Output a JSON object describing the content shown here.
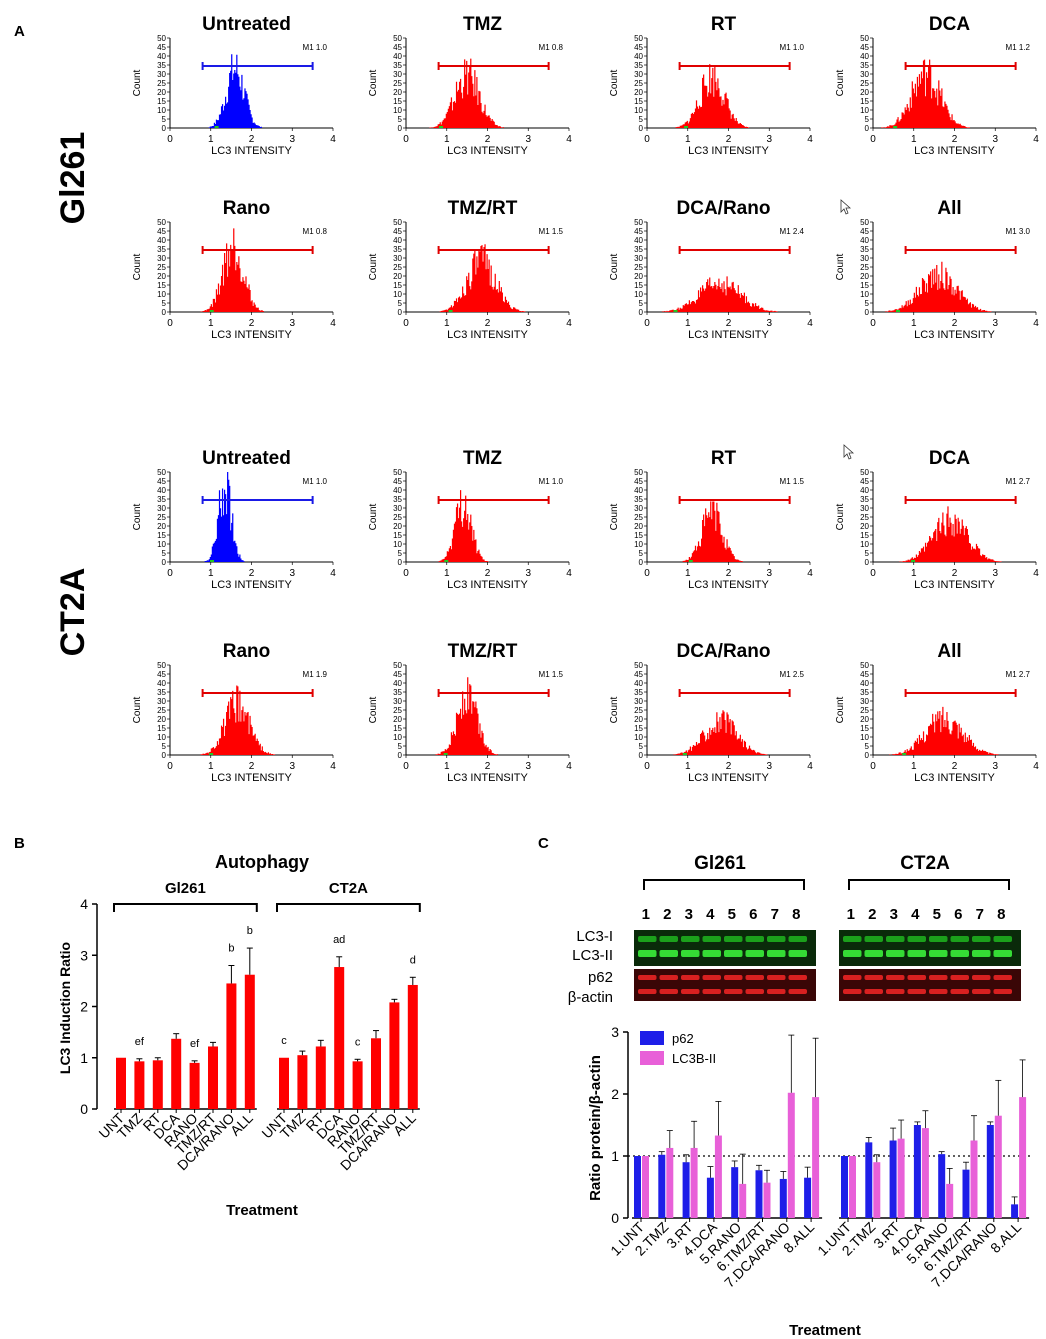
{
  "panels": {
    "a": "A",
    "b": "B",
    "c": "C"
  },
  "colors": {
    "untreated": "#0000ff",
    "treated": "#ff0000",
    "gate_blue": "#1a1ae6",
    "gate_red": "#e00000",
    "p62": "#1e1ee8",
    "lc3": "#e860d8",
    "green_band": "#22c822",
    "red_band": "#d82020"
  },
  "chart_data": [
    {
      "type": "histogram",
      "id": "flow-gl261",
      "cell_line": "Gl261",
      "xlabel": "LC3 INTENSITY",
      "ylabel": "Count",
      "xlim": [
        0,
        4
      ],
      "ylim": [
        0,
        50
      ],
      "xticks": [
        "0",
        "1",
        "2",
        "3",
        "4"
      ],
      "yticks": [
        "0",
        "5",
        "10",
        "15",
        "20",
        "25",
        "30",
        "35",
        "40",
        "45",
        "50"
      ],
      "gate": {
        "name": "M1",
        "from": 0.8,
        "to": 3.5
      },
      "panels": [
        {
          "title": "Untreated",
          "m1": "M1 1.0",
          "color": "blue",
          "center": 1.6,
          "spread": 0.22,
          "peak": 35
        },
        {
          "title": "TMZ",
          "m1": "M1 0.8",
          "color": "red",
          "center": 1.5,
          "spread": 0.3,
          "peak": 31
        },
        {
          "title": "RT",
          "m1": "M1 1.0",
          "color": "red",
          "center": 1.6,
          "spread": 0.3,
          "peak": 30
        },
        {
          "title": "DCA",
          "m1": "M1 1.2",
          "color": "red",
          "center": 1.3,
          "spread": 0.35,
          "peak": 32
        },
        {
          "title": "Rano",
          "m1": "M1 0.8",
          "color": "red",
          "center": 1.55,
          "spread": 0.25,
          "peak": 40
        },
        {
          "title": "TMZ/RT",
          "m1": "M1 1.5",
          "color": "red",
          "center": 1.85,
          "spread": 0.35,
          "peak": 30
        },
        {
          "title": "DCA/Rano",
          "m1": "M1 2.4",
          "color": "red",
          "center": 1.8,
          "spread": 0.5,
          "peak": 17
        },
        {
          "title": "All",
          "m1": "M1 3.0",
          "color": "red",
          "center": 1.6,
          "spread": 0.45,
          "peak": 22
        }
      ]
    },
    {
      "type": "histogram",
      "id": "flow-ct2a",
      "cell_line": "CT2A",
      "xlabel": "LC3 INTENSITY",
      "ylabel": "Count",
      "xlim": [
        0,
        4
      ],
      "ylim": [
        0,
        50
      ],
      "xticks": [
        "0",
        "1",
        "2",
        "3",
        "4"
      ],
      "yticks": [
        "0",
        "5",
        "10",
        "15",
        "20",
        "25",
        "30",
        "35",
        "40",
        "45",
        "50"
      ],
      "gate": {
        "name": "M1",
        "from": 0.8,
        "to": 3.5
      },
      "panels": [
        {
          "title": "Untreated",
          "m1": "M1 1.0",
          "color": "blue",
          "center": 1.35,
          "spread": 0.16,
          "peak": 45
        },
        {
          "title": "TMZ",
          "m1": "M1 1.0",
          "color": "red",
          "center": 1.4,
          "spread": 0.2,
          "peak": 35
        },
        {
          "title": "RT",
          "m1": "M1 1.5",
          "color": "red",
          "center": 1.6,
          "spread": 0.25,
          "peak": 30
        },
        {
          "title": "DCA",
          "m1": "M1 2.7",
          "color": "red",
          "center": 1.9,
          "spread": 0.42,
          "peak": 25
        },
        {
          "title": "Rano",
          "m1": "M1 1.9",
          "color": "red",
          "center": 1.65,
          "spread": 0.3,
          "peak": 30
        },
        {
          "title": "TMZ/RT",
          "m1": "M1 1.5",
          "color": "red",
          "center": 1.5,
          "spread": 0.25,
          "peak": 35
        },
        {
          "title": "DCA/Rano",
          "m1": "M1 2.5",
          "color": "red",
          "center": 1.8,
          "spread": 0.4,
          "peak": 20
        },
        {
          "title": "All",
          "m1": "M1 2.7",
          "color": "red",
          "center": 1.75,
          "spread": 0.45,
          "peak": 22
        }
      ]
    },
    {
      "type": "bar",
      "id": "lc3-induction",
      "title": "Autophagy",
      "xlabel": "Treatment",
      "ylabel": "LC3 Induction Ratio",
      "ylim": [
        0,
        4
      ],
      "yticks": [
        "0",
        "1",
        "2",
        "3",
        "4"
      ],
      "groups": [
        {
          "name": "Gl261",
          "categories": [
            "UNT",
            "TMZ",
            "RT",
            "DCA",
            "RANO",
            "TMZ/RT",
            "DCA/RANO",
            "ALL"
          ],
          "values": [
            1.0,
            0.93,
            0.95,
            1.37,
            0.9,
            1.22,
            2.45,
            2.62
          ],
          "errors": [
            0.0,
            0.05,
            0.05,
            0.1,
            0.04,
            0.08,
            0.35,
            0.52
          ],
          "annotations": [
            "",
            "ef",
            "",
            "",
            "ef",
            "",
            "b",
            "b"
          ]
        },
        {
          "name": "CT2A",
          "categories": [
            "UNT",
            "TMZ",
            "RT",
            "DCA",
            "RANO",
            "TMZ/RT",
            "DCA/RANO",
            "ALL"
          ],
          "values": [
            1.0,
            1.05,
            1.22,
            2.77,
            0.93,
            1.38,
            2.08,
            2.42
          ],
          "errors": [
            0.0,
            0.08,
            0.12,
            0.2,
            0.04,
            0.15,
            0.06,
            0.15
          ],
          "annotations": [
            "c",
            "",
            "",
            "ad",
            "c",
            "",
            "",
            "d"
          ]
        }
      ]
    },
    {
      "type": "bar",
      "id": "western-quant",
      "xlabel": "Treatment",
      "ylabel": "Ratio protein/β-actin",
      "ylim": [
        0,
        3
      ],
      "yticks": [
        "0",
        "1",
        "2",
        "3"
      ],
      "reference_line": 1,
      "legend": [
        "p62",
        "LC3B-II"
      ],
      "legend_position": "top-left",
      "groups": [
        {
          "name": "Gl261",
          "categories": [
            "1.UNT",
            "2.TMZ",
            "3.RT",
            "4.DCA",
            "5.RANO",
            "6.TMZ/RT",
            "7.DCA/RANO",
            "8.ALL"
          ],
          "series": [
            {
              "name": "p62",
              "values": [
                1.0,
                1.02,
                0.9,
                0.65,
                0.82,
                0.77,
                0.63,
                0.65
              ],
              "errors": [
                0.0,
                0.05,
                0.12,
                0.18,
                0.1,
                0.08,
                0.12,
                0.17
              ]
            },
            {
              "name": "LC3B-II",
              "values": [
                1.0,
                1.13,
                1.13,
                1.33,
                0.55,
                0.57,
                2.02,
                1.95
              ],
              "errors": [
                0.0,
                0.28,
                0.43,
                0.55,
                0.48,
                0.2,
                0.93,
                0.95
              ]
            }
          ]
        },
        {
          "name": "CT2A",
          "categories": [
            "1.UNT",
            "2.TMZ",
            "3.RT",
            "4.DCA",
            "5.RANO",
            "6.TMZ/RT",
            "7.DCA/RANO",
            "8.ALL"
          ],
          "series": [
            {
              "name": "p62",
              "values": [
                1.0,
                1.22,
                1.25,
                1.5,
                1.03,
                0.78,
                1.5,
                0.22
              ],
              "errors": [
                0.0,
                0.08,
                0.2,
                0.05,
                0.04,
                0.12,
                0.05,
                0.12
              ]
            },
            {
              "name": "LC3B-II",
              "values": [
                1.0,
                0.9,
                1.28,
                1.45,
                0.55,
                1.25,
                1.65,
                1.95
              ],
              "errors": [
                0.0,
                0.12,
                0.3,
                0.28,
                0.25,
                0.4,
                0.57,
                0.6
              ]
            }
          ]
        }
      ]
    }
  ],
  "western": {
    "blots": [
      {
        "name": "Gl261",
        "lanes": [
          "1",
          "2",
          "3",
          "4",
          "5",
          "6",
          "7",
          "8"
        ]
      },
      {
        "name": "CT2A",
        "lanes": [
          "1",
          "2",
          "3",
          "4",
          "5",
          "6",
          "7",
          "8"
        ]
      }
    ],
    "band_labels": [
      "LC3-I",
      "LC3-II",
      "p62",
      "β-actin"
    ]
  }
}
